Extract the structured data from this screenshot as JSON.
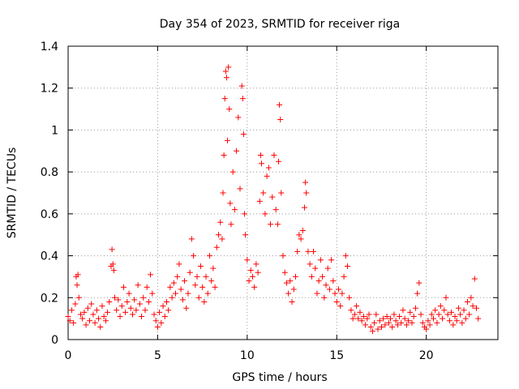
{
  "chart_data": {
    "type": "scatter",
    "title": "Day 354 of 2023, SRMTID for receiver riga",
    "xlabel": "GPS time / hours",
    "ylabel": "SRMTID / TECUs",
    "xlim": [
      0,
      24
    ],
    "ylim": [
      0,
      1.4
    ],
    "xticks": [
      0,
      5,
      10,
      15,
      20
    ],
    "yticks": [
      0,
      0.2,
      0.4,
      0.6,
      0.8,
      1,
      1.2,
      1.4
    ],
    "xtick_labels": [
      "0",
      "5",
      "10",
      "15",
      "20"
    ],
    "ytick_labels": [
      "0",
      "0.2",
      "0.4",
      "0.6",
      "0.8",
      "1",
      "1.2",
      "1.4"
    ],
    "grid": true,
    "marker": "+",
    "color": "#ff0000",
    "series": [
      {
        "name": "SRMTID",
        "points": [
          [
            0.0,
            0.11
          ],
          [
            0.1,
            0.09
          ],
          [
            0.2,
            0.14
          ],
          [
            0.3,
            0.08
          ],
          [
            0.4,
            0.17
          ],
          [
            0.45,
            0.3
          ],
          [
            0.5,
            0.26
          ],
          [
            0.55,
            0.31
          ],
          [
            0.6,
            0.2
          ],
          [
            0.7,
            0.12
          ],
          [
            0.8,
            0.1
          ],
          [
            0.9,
            0.13
          ],
          [
            1.0,
            0.07
          ],
          [
            1.1,
            0.15
          ],
          [
            1.2,
            0.09
          ],
          [
            1.3,
            0.17
          ],
          [
            1.4,
            0.12
          ],
          [
            1.5,
            0.08
          ],
          [
            1.6,
            0.14
          ],
          [
            1.7,
            0.1
          ],
          [
            1.8,
            0.06
          ],
          [
            1.9,
            0.16
          ],
          [
            2.0,
            0.11
          ],
          [
            2.1,
            0.09
          ],
          [
            2.2,
            0.13
          ],
          [
            2.3,
            0.18
          ],
          [
            2.4,
            0.35
          ],
          [
            2.45,
            0.43
          ],
          [
            2.5,
            0.36
          ],
          [
            2.55,
            0.33
          ],
          [
            2.6,
            0.2
          ],
          [
            2.7,
            0.14
          ],
          [
            2.8,
            0.19
          ],
          [
            2.9,
            0.11
          ],
          [
            3.0,
            0.16
          ],
          [
            3.1,
            0.25
          ],
          [
            3.2,
            0.13
          ],
          [
            3.3,
            0.18
          ],
          [
            3.4,
            0.22
          ],
          [
            3.5,
            0.15
          ],
          [
            3.6,
            0.12
          ],
          [
            3.7,
            0.19
          ],
          [
            3.8,
            0.14
          ],
          [
            3.9,
            0.26
          ],
          [
            4.0,
            0.17
          ],
          [
            4.1,
            0.11
          ],
          [
            4.2,
            0.2
          ],
          [
            4.3,
            0.14
          ],
          [
            4.4,
            0.25
          ],
          [
            4.5,
            0.18
          ],
          [
            4.6,
            0.31
          ],
          [
            4.7,
            0.22
          ],
          [
            4.8,
            0.12
          ],
          [
            4.9,
            0.09
          ],
          [
            5.0,
            0.06
          ],
          [
            5.1,
            0.13
          ],
          [
            5.2,
            0.08
          ],
          [
            5.3,
            0.16
          ],
          [
            5.4,
            0.11
          ],
          [
            5.5,
            0.18
          ],
          [
            5.6,
            0.14
          ],
          [
            5.7,
            0.25
          ],
          [
            5.8,
            0.2
          ],
          [
            5.9,
            0.27
          ],
          [
            6.0,
            0.22
          ],
          [
            6.1,
            0.3
          ],
          [
            6.2,
            0.36
          ],
          [
            6.3,
            0.24
          ],
          [
            6.4,
            0.19
          ],
          [
            6.5,
            0.28
          ],
          [
            6.6,
            0.15
          ],
          [
            6.7,
            0.22
          ],
          [
            6.8,
            0.32
          ],
          [
            6.9,
            0.48
          ],
          [
            7.0,
            0.4
          ],
          [
            7.1,
            0.26
          ],
          [
            7.2,
            0.3
          ],
          [
            7.3,
            0.2
          ],
          [
            7.4,
            0.35
          ],
          [
            7.5,
            0.25
          ],
          [
            7.6,
            0.18
          ],
          [
            7.7,
            0.3
          ],
          [
            7.8,
            0.22
          ],
          [
            7.9,
            0.4
          ],
          [
            8.0,
            0.28
          ],
          [
            8.1,
            0.34
          ],
          [
            8.2,
            0.25
          ],
          [
            8.3,
            0.44
          ],
          [
            8.4,
            0.5
          ],
          [
            8.5,
            0.56
          ],
          [
            8.6,
            0.48
          ],
          [
            8.65,
            0.7
          ],
          [
            8.7,
            0.88
          ],
          [
            8.75,
            1.15
          ],
          [
            8.8,
            1.28
          ],
          [
            8.85,
            1.25
          ],
          [
            8.9,
            0.95
          ],
          [
            8.95,
            1.3
          ],
          [
            9.0,
            1.1
          ],
          [
            9.05,
            0.65
          ],
          [
            9.1,
            0.55
          ],
          [
            9.2,
            0.8
          ],
          [
            9.3,
            0.62
          ],
          [
            9.4,
            0.9
          ],
          [
            9.5,
            1.06
          ],
          [
            9.6,
            0.72
          ],
          [
            9.7,
            1.21
          ],
          [
            9.75,
            1.15
          ],
          [
            9.8,
            0.98
          ],
          [
            9.85,
            0.6
          ],
          [
            9.9,
            0.5
          ],
          [
            10.0,
            0.38
          ],
          [
            10.1,
            0.28
          ],
          [
            10.2,
            0.33
          ],
          [
            10.3,
            0.3
          ],
          [
            10.4,
            0.25
          ],
          [
            10.5,
            0.36
          ],
          [
            10.6,
            0.32
          ],
          [
            10.7,
            0.66
          ],
          [
            10.75,
            0.88
          ],
          [
            10.8,
            0.84
          ],
          [
            10.9,
            0.7
          ],
          [
            11.0,
            0.6
          ],
          [
            11.1,
            0.78
          ],
          [
            11.2,
            0.82
          ],
          [
            11.3,
            0.55
          ],
          [
            11.4,
            0.68
          ],
          [
            11.5,
            0.88
          ],
          [
            11.6,
            0.62
          ],
          [
            11.7,
            0.55
          ],
          [
            11.75,
            0.85
          ],
          [
            11.8,
            1.12
          ],
          [
            11.85,
            1.05
          ],
          [
            11.9,
            0.7
          ],
          [
            12.0,
            0.4
          ],
          [
            12.1,
            0.32
          ],
          [
            12.2,
            0.27
          ],
          [
            12.3,
            0.22
          ],
          [
            12.4,
            0.28
          ],
          [
            12.5,
            0.18
          ],
          [
            12.6,
            0.24
          ],
          [
            12.7,
            0.3
          ],
          [
            12.8,
            0.42
          ],
          [
            12.9,
            0.5
          ],
          [
            13.0,
            0.48
          ],
          [
            13.1,
            0.52
          ],
          [
            13.2,
            0.63
          ],
          [
            13.25,
            0.75
          ],
          [
            13.3,
            0.7
          ],
          [
            13.4,
            0.42
          ],
          [
            13.5,
            0.36
          ],
          [
            13.6,
            0.3
          ],
          [
            13.7,
            0.42
          ],
          [
            13.8,
            0.34
          ],
          [
            13.9,
            0.22
          ],
          [
            14.0,
            0.28
          ],
          [
            14.1,
            0.38
          ],
          [
            14.2,
            0.3
          ],
          [
            14.3,
            0.2
          ],
          [
            14.4,
            0.26
          ],
          [
            14.5,
            0.34
          ],
          [
            14.6,
            0.24
          ],
          [
            14.7,
            0.38
          ],
          [
            14.8,
            0.28
          ],
          [
            14.9,
            0.22
          ],
          [
            15.0,
            0.18
          ],
          [
            15.1,
            0.24
          ],
          [
            15.2,
            0.16
          ],
          [
            15.3,
            0.22
          ],
          [
            15.4,
            0.3
          ],
          [
            15.5,
            0.4
          ],
          [
            15.6,
            0.35
          ],
          [
            15.7,
            0.2
          ],
          [
            15.8,
            0.14
          ],
          [
            15.9,
            0.1
          ],
          [
            16.0,
            0.12
          ],
          [
            16.1,
            0.16
          ],
          [
            16.2,
            0.1
          ],
          [
            16.3,
            0.13
          ],
          [
            16.4,
            0.09
          ],
          [
            16.5,
            0.11
          ],
          [
            16.6,
            0.07
          ],
          [
            16.7,
            0.1
          ],
          [
            16.8,
            0.12
          ],
          [
            16.9,
            0.06
          ],
          [
            17.0,
            0.04
          ],
          [
            17.1,
            0.08
          ],
          [
            17.2,
            0.12
          ],
          [
            17.3,
            0.05
          ],
          [
            17.4,
            0.09
          ],
          [
            17.5,
            0.06
          ],
          [
            17.6,
            0.1
          ],
          [
            17.7,
            0.07
          ],
          [
            17.8,
            0.11
          ],
          [
            17.9,
            0.08
          ],
          [
            18.0,
            0.1
          ],
          [
            18.1,
            0.06
          ],
          [
            18.2,
            0.12
          ],
          [
            18.3,
            0.09
          ],
          [
            18.4,
            0.07
          ],
          [
            18.5,
            0.11
          ],
          [
            18.6,
            0.08
          ],
          [
            18.7,
            0.14
          ],
          [
            18.8,
            0.1
          ],
          [
            18.9,
            0.07
          ],
          [
            19.0,
            0.09
          ],
          [
            19.1,
            0.13
          ],
          [
            19.2,
            0.08
          ],
          [
            19.3,
            0.11
          ],
          [
            19.4,
            0.15
          ],
          [
            19.5,
            0.22
          ],
          [
            19.6,
            0.27
          ],
          [
            19.7,
            0.12
          ],
          [
            19.8,
            0.08
          ],
          [
            19.9,
            0.06
          ],
          [
            20.0,
            0.05
          ],
          [
            20.1,
            0.09
          ],
          [
            20.2,
            0.07
          ],
          [
            20.3,
            0.12
          ],
          [
            20.4,
            0.1
          ],
          [
            20.5,
            0.14
          ],
          [
            20.6,
            0.08
          ],
          [
            20.7,
            0.12
          ],
          [
            20.8,
            0.16
          ],
          [
            20.9,
            0.1
          ],
          [
            21.0,
            0.14
          ],
          [
            21.1,
            0.2
          ],
          [
            21.2,
            0.12
          ],
          [
            21.3,
            0.09
          ],
          [
            21.4,
            0.13
          ],
          [
            21.5,
            0.07
          ],
          [
            21.6,
            0.11
          ],
          [
            21.7,
            0.09
          ],
          [
            21.8,
            0.15
          ],
          [
            21.9,
            0.12
          ],
          [
            22.0,
            0.08
          ],
          [
            22.1,
            0.14
          ],
          [
            22.2,
            0.1
          ],
          [
            22.3,
            0.18
          ],
          [
            22.4,
            0.12
          ],
          [
            22.5,
            0.2
          ],
          [
            22.6,
            0.16
          ],
          [
            22.7,
            0.29
          ],
          [
            22.8,
            0.15
          ],
          [
            22.9,
            0.1
          ]
        ]
      }
    ]
  }
}
